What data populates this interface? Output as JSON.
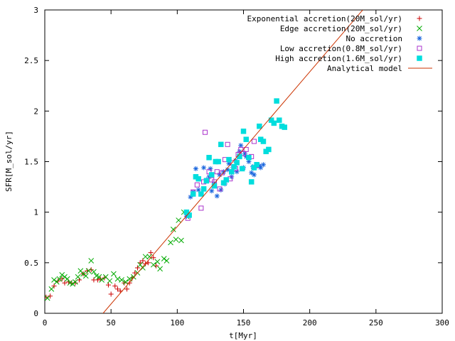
{
  "chart_data": {
    "type": "scatter",
    "title": "",
    "xlabel": "t[Myr]",
    "ylabel": "SFR[M_sol/yr]",
    "xlim": [
      0,
      300
    ],
    "ylim": [
      0,
      3
    ],
    "x_ticks": [
      0,
      50,
      100,
      150,
      200,
      250,
      300
    ],
    "x_tick_labels": [
      "0",
      "50",
      "100",
      "150",
      "200",
      "250",
      "300"
    ],
    "y_ticks": [
      0,
      0.5,
      1,
      1.5,
      2,
      2.5,
      3
    ],
    "y_tick_labels": [
      "0",
      "0.5",
      "1",
      "1.5",
      "2",
      "2.5",
      "3"
    ],
    "grid": false,
    "legend_position": "top-right",
    "series": [
      {
        "name": "Exponential accretion(20M_sol/yr)",
        "marker": "plus",
        "color": "#cc0000",
        "points": [
          [
            1,
            0.16
          ],
          [
            4,
            0.17
          ],
          [
            7,
            0.27
          ],
          [
            10,
            0.32
          ],
          [
            13,
            0.34
          ],
          [
            15,
            0.3
          ],
          [
            18,
            0.31
          ],
          [
            20,
            0.3
          ],
          [
            23,
            0.3
          ],
          [
            26,
            0.33
          ],
          [
            29,
            0.39
          ],
          [
            32,
            0.42
          ],
          [
            35,
            0.43
          ],
          [
            37,
            0.33
          ],
          [
            40,
            0.33
          ],
          [
            42,
            0.34
          ],
          [
            45,
            0.35
          ],
          [
            48,
            0.28
          ],
          [
            50,
            0.19
          ],
          [
            53,
            0.27
          ],
          [
            55,
            0.24
          ],
          [
            57,
            0.22
          ],
          [
            60,
            0.3
          ],
          [
            62,
            0.24
          ],
          [
            64,
            0.3
          ],
          [
            66,
            0.35
          ],
          [
            68,
            0.4
          ],
          [
            70,
            0.45
          ],
          [
            72,
            0.5
          ],
          [
            74,
            0.52
          ],
          [
            76,
            0.49
          ],
          [
            78,
            0.5
          ],
          [
            80,
            0.6
          ],
          [
            82,
            0.55
          ],
          [
            84,
            0.47
          ]
        ]
      },
      {
        "name": "Edge accretion(20M_sol/yr)",
        "marker": "cross",
        "color": "#00aa00",
        "points": [
          [
            2,
            0.15
          ],
          [
            5,
            0.24
          ],
          [
            7,
            0.33
          ],
          [
            9,
            0.31
          ],
          [
            11,
            0.34
          ],
          [
            13,
            0.38
          ],
          [
            15,
            0.36
          ],
          [
            17,
            0.34
          ],
          [
            19,
            0.3
          ],
          [
            21,
            0.29
          ],
          [
            23,
            0.31
          ],
          [
            25,
            0.36
          ],
          [
            27,
            0.42
          ],
          [
            29,
            0.39
          ],
          [
            31,
            0.37
          ],
          [
            33,
            0.42
          ],
          [
            35,
            0.52
          ],
          [
            37,
            0.41
          ],
          [
            39,
            0.37
          ],
          [
            41,
            0.36
          ],
          [
            43,
            0.33
          ],
          [
            46,
            0.36
          ],
          [
            49,
            0.32
          ],
          [
            52,
            0.39
          ],
          [
            55,
            0.34
          ],
          [
            58,
            0.33
          ],
          [
            61,
            0.31
          ],
          [
            64,
            0.34
          ],
          [
            67,
            0.36
          ],
          [
            70,
            0.4
          ],
          [
            72,
            0.48
          ],
          [
            74,
            0.45
          ],
          [
            76,
            0.56
          ],
          [
            79,
            0.56
          ],
          [
            82,
            0.48
          ],
          [
            85,
            0.51
          ],
          [
            87,
            0.44
          ],
          [
            90,
            0.54
          ],
          [
            92,
            0.52
          ],
          [
            95,
            0.7
          ],
          [
            97,
            0.83
          ],
          [
            99,
            0.73
          ],
          [
            101,
            0.92
          ],
          [
            103,
            0.72
          ],
          [
            105,
            1.0
          ],
          [
            107,
            0.96
          ]
        ]
      },
      {
        "name": "No accretion",
        "marker": "star",
        "color": "#1a66dd",
        "points": [
          [
            107,
            0.96
          ],
          [
            110,
            1.15
          ],
          [
            112,
            1.2
          ],
          [
            114,
            1.43
          ],
          [
            116,
            1.22
          ],
          [
            118,
            1.18
          ],
          [
            120,
            1.44
          ],
          [
            122,
            1.32
          ],
          [
            124,
            1.35
          ],
          [
            125,
            1.43
          ],
          [
            126,
            1.21
          ],
          [
            128,
            1.28
          ],
          [
            130,
            1.16
          ],
          [
            132,
            1.37
          ],
          [
            133,
            1.22
          ],
          [
            135,
            1.4
          ],
          [
            136,
            1.28
          ],
          [
            138,
            1.42
          ],
          [
            139,
            1.48
          ],
          [
            141,
            1.35
          ],
          [
            142,
            1.44
          ],
          [
            144,
            1.51
          ],
          [
            145,
            1.4
          ],
          [
            147,
            1.6
          ],
          [
            148,
            1.66
          ],
          [
            150,
            1.44
          ],
          [
            151,
            1.58
          ],
          [
            152,
            1.55
          ],
          [
            154,
            1.5
          ],
          [
            156,
            1.39
          ],
          [
            157,
            1.45
          ],
          [
            158,
            1.37
          ],
          [
            160,
            1.46
          ],
          [
            162,
            1.46
          ],
          [
            163,
            1.44
          ],
          [
            165,
            1.47
          ]
        ]
      },
      {
        "name": "Low accretion(0.8M_sol/yr)",
        "marker": "square-open",
        "color": "#aa33cc",
        "points": [
          [
            108,
            0.94
          ],
          [
            112,
            1.2
          ],
          [
            115,
            1.27
          ],
          [
            118,
            1.04
          ],
          [
            120,
            1.3
          ],
          [
            121,
            1.79
          ],
          [
            124,
            1.4
          ],
          [
            126,
            1.32
          ],
          [
            128,
            1.3
          ],
          [
            130,
            1.4
          ],
          [
            132,
            1.23
          ],
          [
            134,
            1.39
          ],
          [
            136,
            1.52
          ],
          [
            138,
            1.67
          ],
          [
            140,
            1.33
          ],
          [
            142,
            1.49
          ],
          [
            144,
            1.43
          ],
          [
            146,
            1.57
          ],
          [
            148,
            1.62
          ],
          [
            150,
            1.58
          ],
          [
            152,
            1.62
          ],
          [
            154,
            1.54
          ],
          [
            156,
            1.55
          ],
          [
            158,
            1.7
          ],
          [
            160,
            1.46
          ]
        ]
      },
      {
        "name": "High accretion(1.6M_sol/yr)",
        "marker": "square-filled",
        "color": "#00dddd",
        "points": [
          [
            107,
            1.0
          ],
          [
            109,
            0.97
          ],
          [
            112,
            1.18
          ],
          [
            114,
            1.35
          ],
          [
            116,
            1.33
          ],
          [
            118,
            1.18
          ],
          [
            120,
            1.23
          ],
          [
            122,
            1.31
          ],
          [
            124,
            1.54
          ],
          [
            126,
            1.37
          ],
          [
            128,
            1.26
          ],
          [
            129,
            1.5
          ],
          [
            131,
            1.5
          ],
          [
            133,
            1.67
          ],
          [
            135,
            1.29
          ],
          [
            137,
            1.32
          ],
          [
            139,
            1.52
          ],
          [
            141,
            1.4
          ],
          [
            143,
            1.45
          ],
          [
            145,
            1.49
          ],
          [
            147,
            1.55
          ],
          [
            149,
            1.43
          ],
          [
            150,
            1.8
          ],
          [
            152,
            1.72
          ],
          [
            154,
            1.54
          ],
          [
            156,
            1.3
          ],
          [
            158,
            1.44
          ],
          [
            160,
            1.47
          ],
          [
            162,
            1.85
          ],
          [
            163,
            1.72
          ],
          [
            165,
            1.7
          ],
          [
            167,
            1.6
          ],
          [
            169,
            1.62
          ],
          [
            171,
            1.91
          ],
          [
            173,
            1.88
          ],
          [
            175,
            2.1
          ],
          [
            177,
            1.91
          ],
          [
            179,
            1.85
          ],
          [
            181,
            1.84
          ]
        ]
      },
      {
        "name": "Analytical model",
        "marker": "line",
        "color": "#cc3300",
        "points": [
          [
            44,
            0
          ],
          [
            240,
            3
          ]
        ]
      }
    ]
  }
}
